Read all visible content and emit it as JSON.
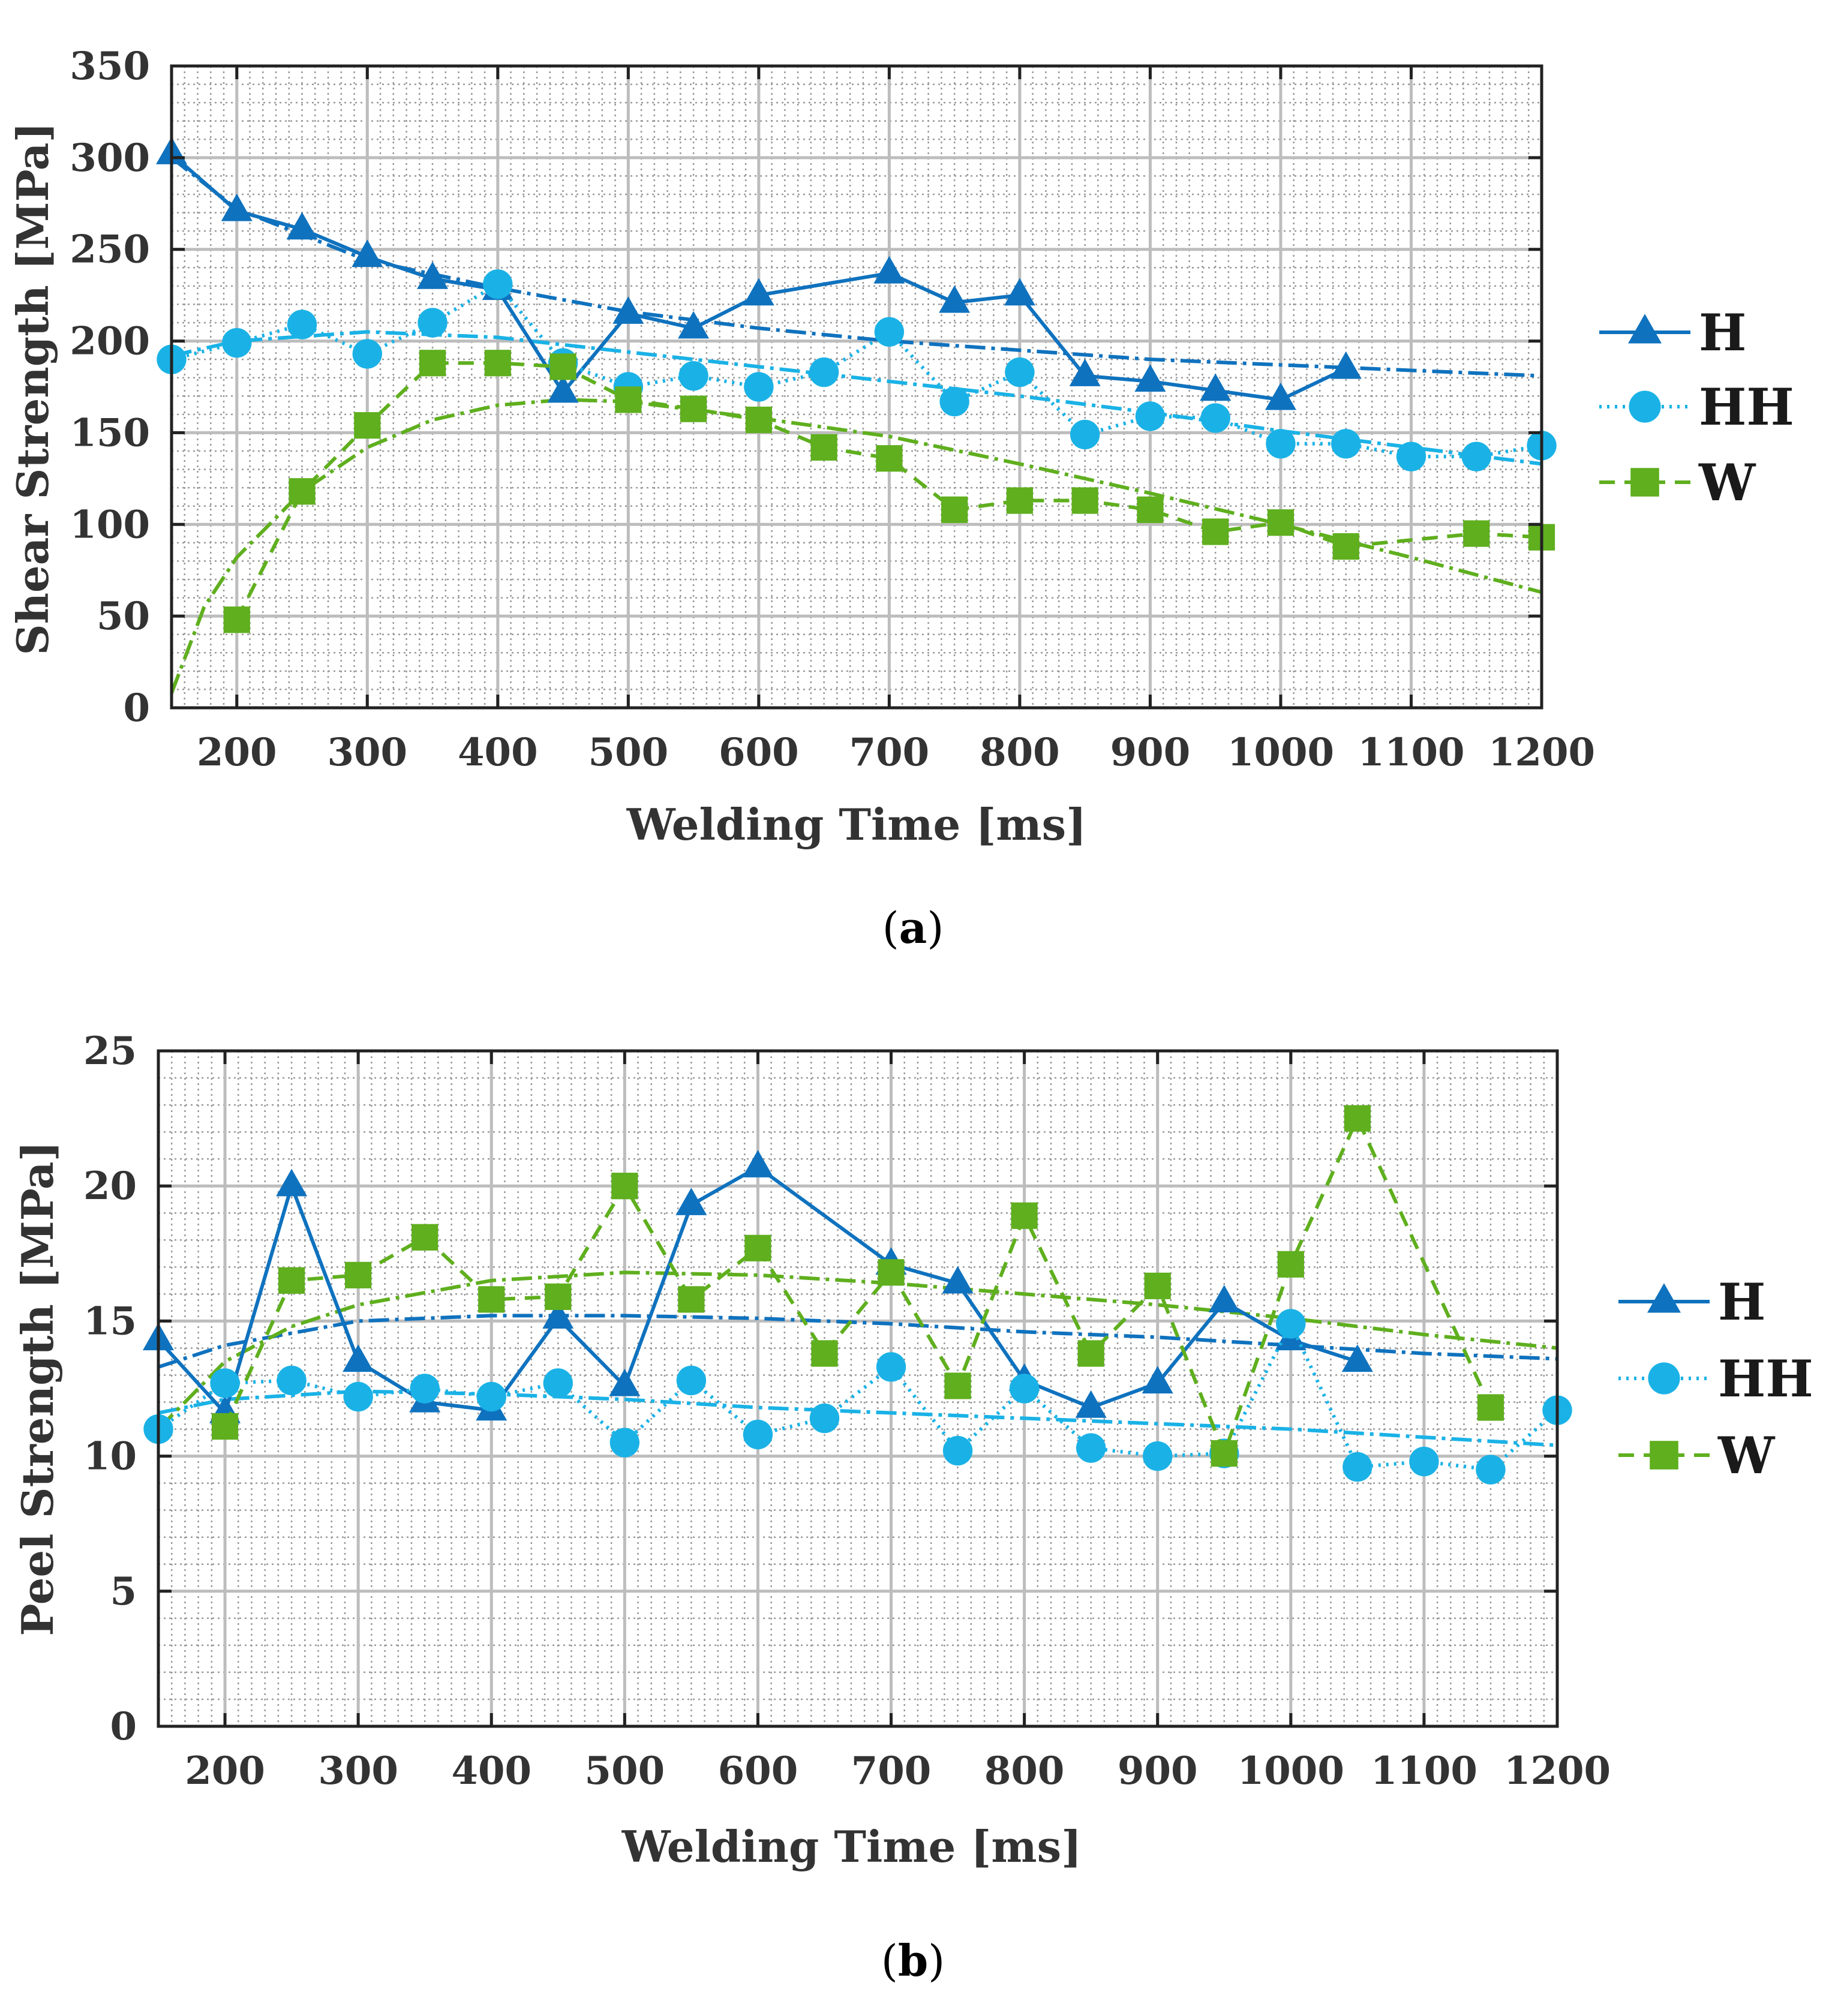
{
  "panels": [
    {
      "label": "a",
      "chart_data": {
        "type": "line",
        "xlabel": "Welding Time [ms]",
        "ylabel": "Shear Strength [MPa]",
        "xlim": [
          150,
          1200
        ],
        "ylim": [
          0,
          350
        ],
        "xticks": [
          200,
          300,
          400,
          500,
          600,
          700,
          800,
          900,
          1000,
          1100,
          1200
        ],
        "yticks": [
          0,
          50,
          100,
          150,
          200,
          250,
          300,
          350
        ],
        "grid": true,
        "minor_grid": true,
        "legend_position": "right",
        "series": [
          {
            "name": "H",
            "color": "#0f72be",
            "marker": "triangle",
            "line_style": "solid",
            "x": [
              150,
              200,
              250,
              300,
              350,
              400,
              450,
              500,
              550,
              600,
              700,
              750,
              800,
              850,
              900,
              950,
              1000,
              1050
            ],
            "y": [
              302,
              271,
              261,
              246,
              234,
              228,
              172,
              215,
              207,
              225,
              237,
              221,
              225,
              181,
              178,
              173,
              168,
              185
            ],
            "trend": {
              "x": [
                150,
                200,
                300,
                400,
                500,
                600,
                700,
                800,
                900,
                1000,
                1100,
                1200
              ],
              "y": [
                300,
                272,
                244,
                229,
                216,
                207,
                200,
                195,
                190,
                187,
                184,
                181
              ]
            }
          },
          {
            "name": "HH",
            "color": "#1ab2e6",
            "marker": "circle",
            "line_style": "dotted",
            "x": [
              150,
              200,
              250,
              300,
              350,
              400,
              450,
              500,
              550,
              600,
              650,
              700,
              750,
              800,
              850,
              900,
              950,
              1000,
              1050,
              1100,
              1150,
              1200
            ],
            "y": [
              190,
              199,
              209,
              193,
              210,
              231,
              188,
              175,
              181,
              175,
              183,
              205,
              167,
              183,
              149,
              159,
              158,
              144,
              144,
              137,
              137,
              143
            ],
            "trend": {
              "x": [
                150,
                200,
                300,
                400,
                500,
                600,
                700,
                800,
                900,
                1000,
                1100,
                1200
              ],
              "y": [
                192,
                200,
                205,
                202,
                194,
                186,
                178,
                170,
                161,
                151,
                142,
                133
              ]
            }
          },
          {
            "name": "W",
            "color": "#5faf1e",
            "marker": "square",
            "line_style": "dashed",
            "x": [
              200,
              250,
              300,
              350,
              400,
              450,
              500,
              550,
              600,
              650,
              700,
              750,
              800,
              850,
              900,
              950,
              1000,
              1050,
              1150,
              1200
            ],
            "y": [
              48,
              118,
              154,
              188,
              188,
              186,
              168,
              163,
              157,
              142,
              136,
              108,
              113,
              113,
              108,
              96,
              101,
              88,
              95,
              93
            ],
            "trend": {
              "x": [
                150,
                175,
                200,
                250,
                300,
                350,
                400,
                450,
                500,
                600,
                700,
                800,
                900,
                1000,
                1100,
                1200
              ],
              "y": [
                8,
                55,
                82,
                118,
                142,
                157,
                165,
                168,
                167,
                158,
                148,
                133,
                117,
                100,
                82,
                63
              ]
            }
          }
        ]
      }
    },
    {
      "label": "b",
      "chart_data": {
        "type": "line",
        "xlabel": "Welding Time [ms]",
        "ylabel": "Peel Strength [MPa]",
        "xlim": [
          150,
          1200
        ],
        "ylim": [
          0,
          25
        ],
        "xticks": [
          200,
          300,
          400,
          500,
          600,
          700,
          800,
          900,
          1000,
          1100,
          1200
        ],
        "yticks": [
          0,
          5,
          10,
          15,
          20,
          25
        ],
        "grid": true,
        "minor_grid": true,
        "legend_position": "right",
        "series": [
          {
            "name": "H",
            "color": "#0f72be",
            "marker": "triangle",
            "line_style": "solid",
            "x": [
              150,
              200,
              250,
              300,
              350,
              400,
              450,
              500,
              550,
              600,
              700,
              750,
              800,
              850,
              900,
              950,
              1000,
              1050
            ],
            "y": [
              14.3,
              11.6,
              20.0,
              13.5,
              12.0,
              11.7,
              15.1,
              12.6,
              19.3,
              20.7,
              17.1,
              16.4,
              12.8,
              11.8,
              12.7,
              15.7,
              14.3,
              13.5
            ],
            "trend": {
              "x": [
                150,
                200,
                300,
                400,
                500,
                600,
                700,
                800,
                900,
                1000,
                1100,
                1200
              ],
              "y": [
                13.3,
                14.1,
                15.0,
                15.2,
                15.2,
                15.1,
                14.9,
                14.6,
                14.4,
                14.1,
                13.8,
                13.6
              ]
            }
          },
          {
            "name": "HH",
            "color": "#1ab2e6",
            "marker": "circle",
            "line_style": "dotted",
            "x": [
              150,
              200,
              250,
              300,
              350,
              400,
              450,
              500,
              550,
              600,
              650,
              700,
              750,
              800,
              850,
              900,
              950,
              1000,
              1050,
              1100,
              1150,
              1200
            ],
            "y": [
              11.0,
              12.7,
              12.8,
              12.2,
              12.5,
              12.2,
              12.7,
              10.5,
              12.8,
              10.8,
              11.4,
              13.3,
              10.2,
              12.5,
              10.3,
              10.0,
              10.1,
              14.9,
              9.6,
              9.8,
              9.5,
              11.7
            ],
            "trend": {
              "x": [
                150,
                200,
                300,
                400,
                500,
                600,
                700,
                800,
                900,
                1000,
                1100,
                1200
              ],
              "y": [
                11.6,
                12.1,
                12.4,
                12.3,
                12.1,
                11.8,
                11.6,
                11.4,
                11.2,
                11.0,
                10.7,
                10.4
              ]
            }
          },
          {
            "name": "W",
            "color": "#5faf1e",
            "marker": "square",
            "line_style": "dashed",
            "x": [
              200,
              250,
              300,
              350,
              400,
              450,
              500,
              550,
              600,
              650,
              700,
              750,
              800,
              850,
              900,
              950,
              1000,
              1050,
              1150
            ],
            "y": [
              11.1,
              16.5,
              16.7,
              18.1,
              15.8,
              15.9,
              20.0,
              15.8,
              17.7,
              13.8,
              16.8,
              12.6,
              18.9,
              13.8,
              16.3,
              10.1,
              17.1,
              22.5,
              11.8
            ],
            "trend": {
              "x": [
                150,
                200,
                250,
                300,
                400,
                500,
                600,
                700,
                800,
                900,
                1000,
                1100,
                1200
              ],
              "y": [
                11.0,
                13.5,
                14.8,
                15.6,
                16.5,
                16.8,
                16.7,
                16.4,
                16.0,
                15.6,
                15.1,
                14.5,
                14.0
              ]
            }
          }
        ]
      }
    }
  ]
}
